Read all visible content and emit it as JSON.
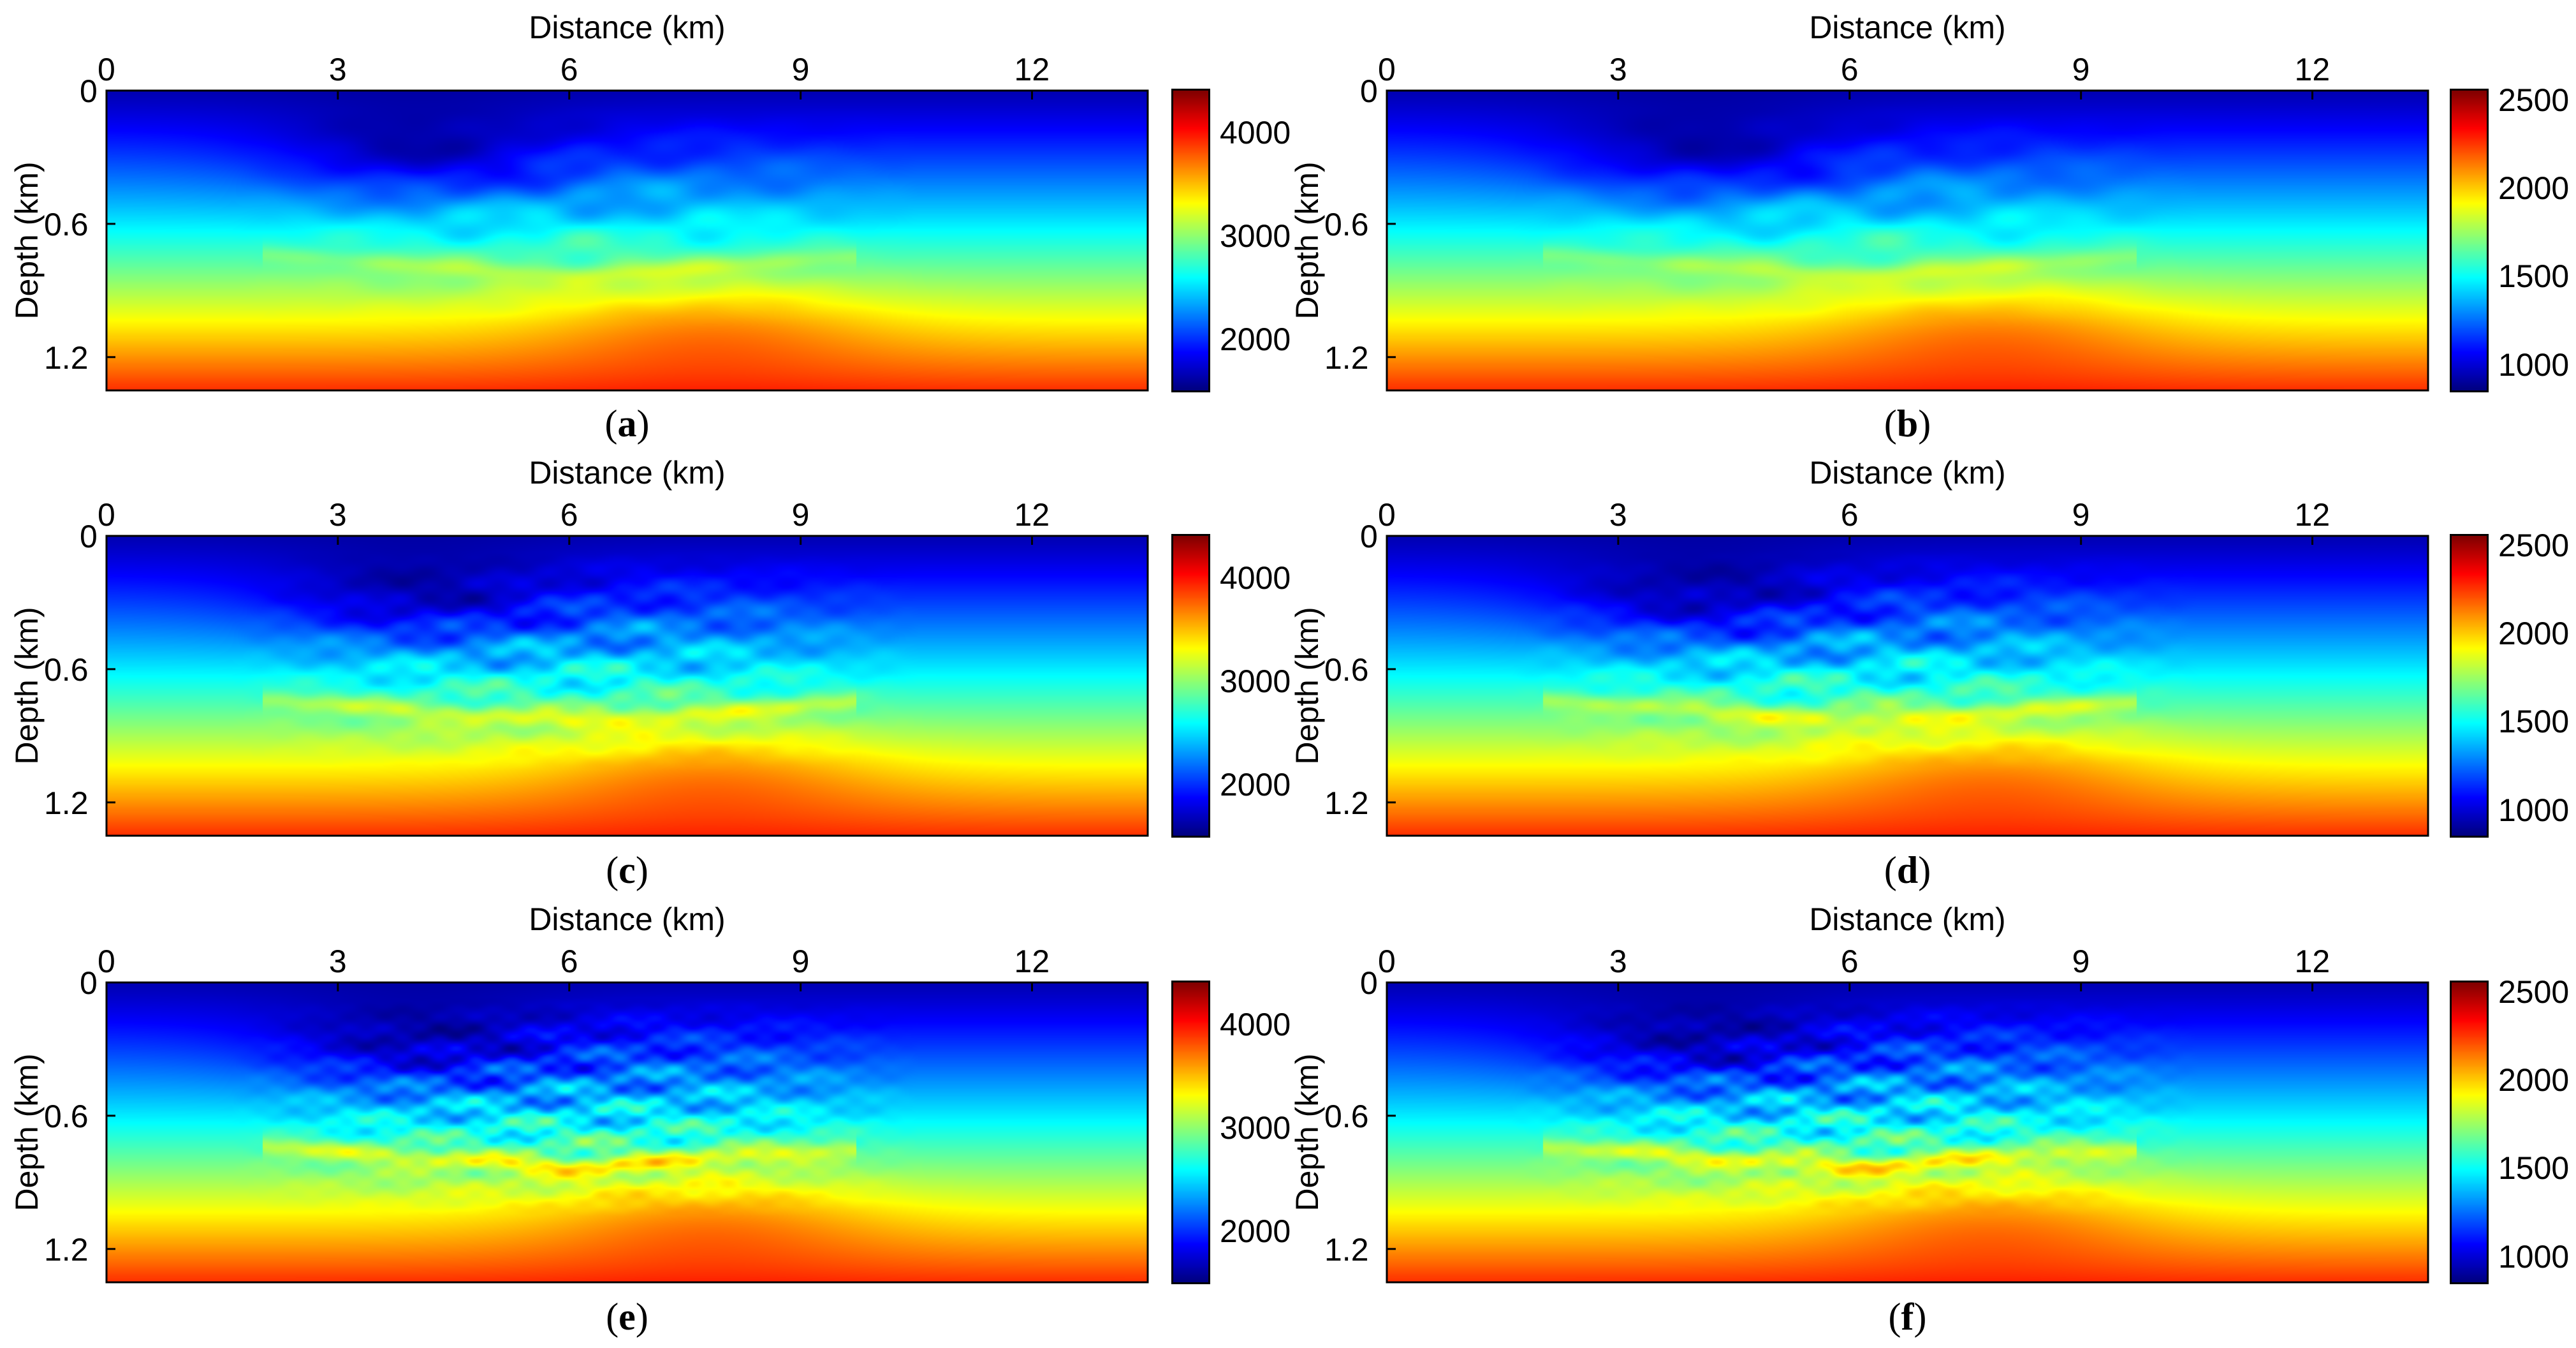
{
  "chart_data": [
    {
      "id": "a",
      "type": "heatmap",
      "caption_letter": "a",
      "xlabel": "Distance (km)",
      "ylabel": "Depth (km)",
      "xticks": [
        "0",
        "3",
        "6",
        "9",
        "12"
      ],
      "xtick_values": [
        0,
        3,
        6,
        9,
        12
      ],
      "yticks": [
        "0",
        "0.6",
        "1.2"
      ],
      "ytick_values": [
        0,
        0.6,
        1.2
      ],
      "xlim": [
        0,
        13.5
      ],
      "ylim": [
        0,
        1.35
      ],
      "colorbar": {
        "ticks": [
          "2000",
          "3000",
          "4000"
        ],
        "tick_values": [
          2000,
          3000,
          4000
        ],
        "range": [
          1500,
          4400
        ]
      },
      "colormap": "jet",
      "detail": 0.45,
      "seed": 11
    },
    {
      "id": "b",
      "type": "heatmap",
      "caption_letter": "b",
      "xlabel": "Distance (km)",
      "ylabel": "Depth (km)",
      "xticks": [
        "0",
        "3",
        "6",
        "9",
        "12"
      ],
      "xtick_values": [
        0,
        3,
        6,
        9,
        12
      ],
      "yticks": [
        "0",
        "0.6",
        "1.2"
      ],
      "ytick_values": [
        0,
        0.6,
        1.2
      ],
      "xlim": [
        0,
        13.5
      ],
      "ylim": [
        0,
        1.35
      ],
      "colorbar": {
        "ticks": [
          "1000",
          "1500",
          "2000",
          "2500"
        ],
        "tick_values": [
          1000,
          1500,
          2000,
          2500
        ],
        "range": [
          850,
          2550
        ]
      },
      "colormap": "jet",
      "detail": 0.45,
      "seed": 23
    },
    {
      "id": "c",
      "type": "heatmap",
      "caption_letter": "c",
      "xlabel": "Distance (km)",
      "ylabel": "Depth (km)",
      "xticks": [
        "0",
        "3",
        "6",
        "9",
        "12"
      ],
      "xtick_values": [
        0,
        3,
        6,
        9,
        12
      ],
      "yticks": [
        "0",
        "0.6",
        "1.2"
      ],
      "ytick_values": [
        0,
        0.6,
        1.2
      ],
      "xlim": [
        0,
        13.5
      ],
      "ylim": [
        0,
        1.35
      ],
      "colorbar": {
        "ticks": [
          "2000",
          "3000",
          "4000"
        ],
        "tick_values": [
          2000,
          3000,
          4000
        ],
        "range": [
          1500,
          4400
        ]
      },
      "colormap": "jet",
      "detail": 0.75,
      "seed": 37
    },
    {
      "id": "d",
      "type": "heatmap",
      "caption_letter": "d",
      "xlabel": "Distance (km)",
      "ylabel": "Depth (km)",
      "xticks": [
        "0",
        "3",
        "6",
        "9",
        "12"
      ],
      "xtick_values": [
        0,
        3,
        6,
        9,
        12
      ],
      "yticks": [
        "0",
        "0.6",
        "1.2"
      ],
      "ytick_values": [
        0,
        0.6,
        1.2
      ],
      "xlim": [
        0,
        13.5
      ],
      "ylim": [
        0,
        1.35
      ],
      "colorbar": {
        "ticks": [
          "1000",
          "1500",
          "2000",
          "2500"
        ],
        "tick_values": [
          1000,
          1500,
          2000,
          2500
        ],
        "range": [
          850,
          2550
        ]
      },
      "colormap": "jet",
      "detail": 0.75,
      "seed": 41
    },
    {
      "id": "e",
      "type": "heatmap",
      "caption_letter": "e",
      "xlabel": "Distance (km)",
      "ylabel": "Depth (km)",
      "xticks": [
        "0",
        "3",
        "6",
        "9",
        "12"
      ],
      "xtick_values": [
        0,
        3,
        6,
        9,
        12
      ],
      "yticks": [
        "0",
        "0.6",
        "1.2"
      ],
      "ytick_values": [
        0,
        0.6,
        1.2
      ],
      "xlim": [
        0,
        13.5
      ],
      "ylim": [
        0,
        1.35
      ],
      "colorbar": {
        "ticks": [
          "2000",
          "3000",
          "4000"
        ],
        "tick_values": [
          2000,
          3000,
          4000
        ],
        "range": [
          1500,
          4400
        ]
      },
      "colormap": "jet",
      "detail": 1.0,
      "seed": 53
    },
    {
      "id": "f",
      "type": "heatmap",
      "caption_letter": "f",
      "xlabel": "Distance (km)",
      "ylabel": "Depth (km)",
      "xticks": [
        "0",
        "3",
        "6",
        "9",
        "12"
      ],
      "xtick_values": [
        0,
        3,
        6,
        9,
        12
      ],
      "yticks": [
        "0",
        "0.6",
        "1.2"
      ],
      "ytick_values": [
        0,
        0.6,
        1.2
      ],
      "xlim": [
        0,
        13.5
      ],
      "ylim": [
        0,
        1.35
      ],
      "colorbar": {
        "ticks": [
          "1000",
          "1500",
          "2000",
          "2500"
        ],
        "tick_values": [
          1000,
          1500,
          2000,
          2500
        ],
        "range": [
          850,
          2550
        ]
      },
      "colormap": "jet",
      "detail": 1.0,
      "seed": 67
    }
  ]
}
